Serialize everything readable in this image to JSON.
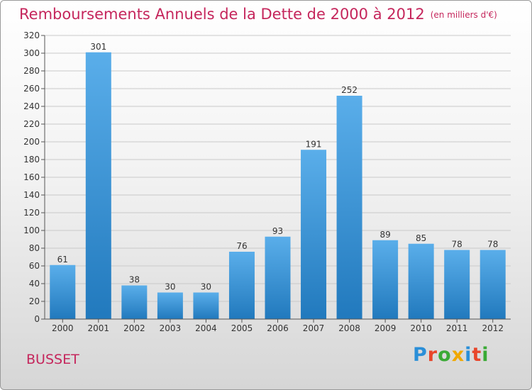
{
  "header": {
    "title": "Remboursements Annuels de la Dette de 2000 à 2012",
    "unit": "(en milliers d'€)"
  },
  "location": "BUSSET",
  "logo": {
    "text": "Proxiti",
    "letter_colors": [
      "#2a8fd8",
      "#e8452a",
      "#3aaa35",
      "#f0a800",
      "#2a8fd8",
      "#e8452a",
      "#3aaa35"
    ]
  },
  "colors": {
    "bar_light": "#5aaeea",
    "bar_dark": "#2179bd",
    "accent": "#c5265c"
  },
  "chart_data": {
    "type": "bar",
    "categories": [
      "2000",
      "2001",
      "2002",
      "2003",
      "2004",
      "2005",
      "2006",
      "2007",
      "2008",
      "2009",
      "2010",
      "2011",
      "2012"
    ],
    "values": [
      61,
      301,
      38,
      30,
      30,
      76,
      93,
      191,
      252,
      89,
      85,
      78,
      78
    ],
    "data_labels": [
      "61",
      "301",
      "38",
      "30",
      "30",
      "76",
      "93",
      "191",
      "252",
      "89",
      "85",
      "78",
      "78"
    ],
    "title": "Remboursements Annuels de la Dette de 2000 à 2012",
    "ylim": [
      0,
      320
    ],
    "yticks": [
      0,
      20,
      40,
      60,
      80,
      100,
      120,
      140,
      160,
      180,
      200,
      220,
      240,
      260,
      280,
      300,
      320
    ],
    "grid": true
  }
}
